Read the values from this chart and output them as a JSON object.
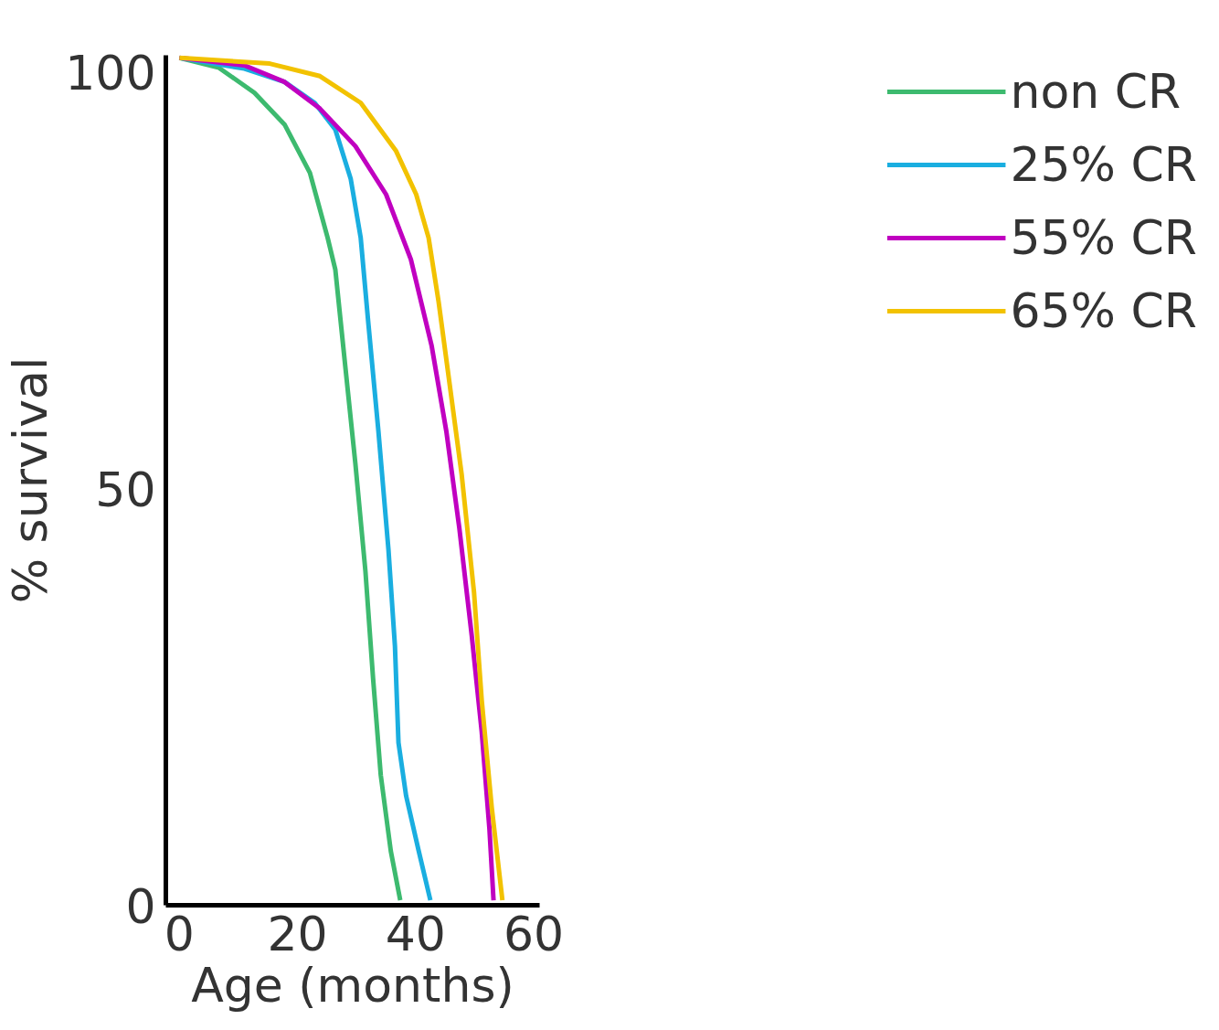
{
  "chart_data": {
    "type": "line",
    "xlabel": "Age (months)",
    "ylabel": "% survival",
    "xlim": [
      -2.3,
      61
    ],
    "ylim": [
      0,
      102
    ],
    "xticks": [
      0,
      20,
      40,
      60
    ],
    "yticks": [
      0,
      50,
      100
    ],
    "grid": false,
    "legend": "top right",
    "marker": "none",
    "line_style": "solid",
    "series": [
      {
        "name": "non CR",
        "color": "#3dba6f",
        "x": [
          0,
          6.7,
          12.7,
          17.8,
          22.1,
          25.1,
          26.4,
          28.1,
          29.8,
          31.5,
          32.8,
          34.1,
          35.8,
          37.4
        ],
        "values": [
          101.7,
          100.5,
          97.5,
          93.7,
          87.9,
          80.1,
          76.3,
          64.6,
          53.0,
          40.1,
          27.2,
          15.6,
          6.5,
          0.6
        ]
      },
      {
        "name": "25% CR",
        "color": "#1aaee0",
        "x": [
          0,
          11,
          17.8,
          22.9,
          26.4,
          29,
          30.7,
          32,
          33.7,
          35.4,
          36.5,
          37.1,
          38.4,
          40.5,
          42.5
        ],
        "values": [
          101.7,
          100.4,
          98.8,
          96.3,
          93.1,
          87.2,
          80.1,
          69.8,
          56.9,
          42.7,
          31.1,
          19.5,
          13.1,
          6.6,
          0.6
        ]
      },
      {
        "name": "55% CR",
        "color": "#c000c0",
        "x": [
          0,
          11,
          17.8,
          23.8,
          29.8,
          35,
          39.2,
          42.7,
          45.2,
          47.4,
          49.5,
          51.2,
          52.5,
          53.2
        ],
        "values": [
          101.7,
          100.8,
          98.8,
          95.6,
          91.1,
          85.3,
          77.5,
          67.2,
          56.9,
          45.3,
          32.4,
          20.8,
          9.2,
          0.6
        ]
      },
      {
        "name": "65% CR",
        "color": "#f2c200",
        "x": [
          0,
          15.3,
          23.8,
          30.7,
          36.7,
          40.1,
          42.2,
          43.9,
          45.6,
          47.8,
          49.9,
          51.2,
          52.9,
          54.7
        ],
        "values": [
          101.7,
          101,
          99.5,
          96.3,
          90.5,
          85.3,
          80.1,
          72.4,
          63.4,
          51.7,
          37.5,
          24.6,
          11.7,
          0.6
        ]
      }
    ]
  }
}
